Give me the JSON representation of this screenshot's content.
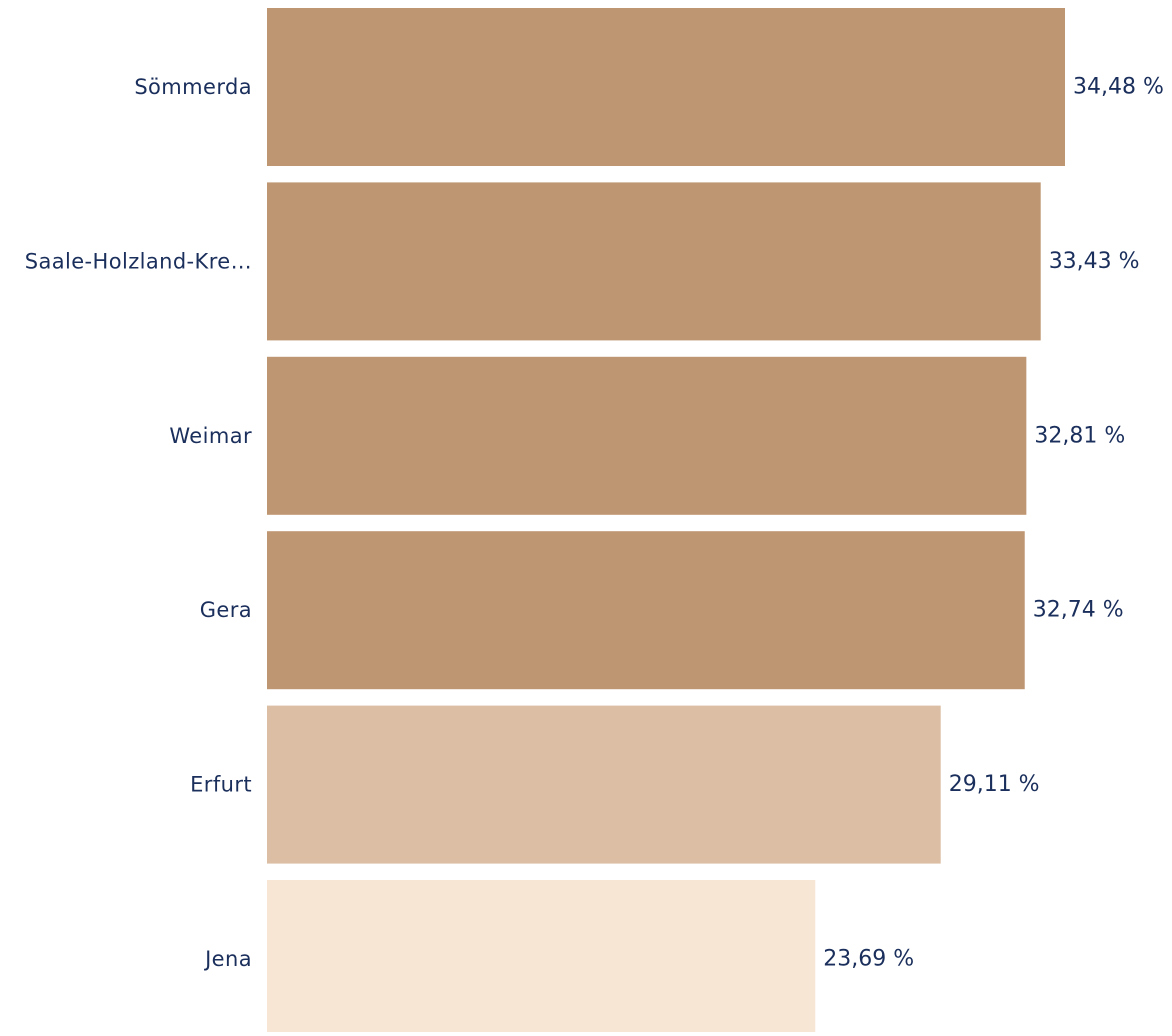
{
  "chart_data": {
    "type": "bar",
    "orientation": "horizontal",
    "categories": [
      "Sömmerda",
      "Saale-Holzland-Kre…",
      "Weimar",
      "Gera",
      "Erfurt",
      "Jena"
    ],
    "values": [
      34.48,
      33.43,
      32.81,
      32.74,
      29.11,
      23.69
    ],
    "value_labels": [
      "34,48 %",
      "33,43 %",
      "32,81 %",
      "32,74 %",
      "29,11 %",
      "23,69 %"
    ],
    "bar_colors": [
      "#be9672",
      "#be9672",
      "#be9672",
      "#be9672",
      "#dcbea5",
      "#f8e6d5"
    ],
    "title": "",
    "xlabel": "",
    "ylabel": "",
    "xlim": [
      0,
      34.48
    ],
    "grid": false,
    "legend": "none"
  },
  "colors": {
    "label_text": "#1b2f5c",
    "background": "#ffffff"
  }
}
